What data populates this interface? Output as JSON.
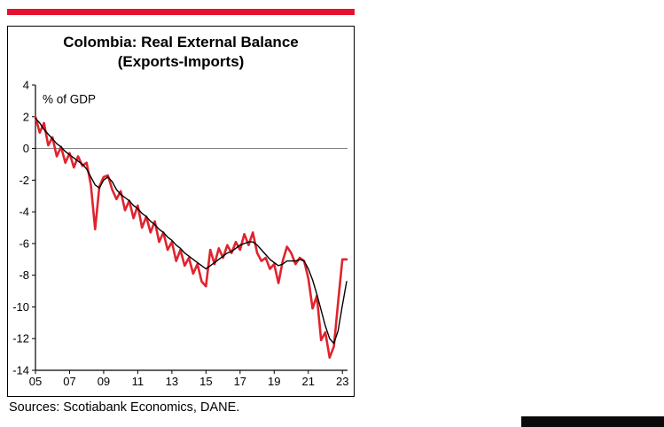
{
  "page": {
    "sources": "Sources: Scotiabank Economics, DANE."
  },
  "chart_data": {
    "type": "line",
    "title": "Colombia: Real External Balance",
    "subtitle": "(Exports-Imports)",
    "ylabel_annotation": "% of GDP",
    "ylim": [
      -14,
      4
    ],
    "ytick_step": 2,
    "xlim": [
      2005,
      2023.3
    ],
    "xticks": [
      2005,
      2007,
      2009,
      2011,
      2013,
      2015,
      2017,
      2019,
      2021,
      2023
    ],
    "xtick_labels": [
      "05",
      "07",
      "09",
      "11",
      "13",
      "15",
      "17",
      "19",
      "21",
      "23"
    ],
    "zero_line": true,
    "grid": false,
    "legend": "none",
    "colors": {
      "brand_red_bar": "#e8112d",
      "series_red": "#e0232e",
      "series_black": "#000000",
      "zero_line": "#7f7f7f"
    },
    "series": [
      {
        "name": "quarterly real external balance",
        "color": "#e0232e",
        "width": 2.6,
        "x_start": 2005.0,
        "x_step": 0.25,
        "values": [
          2.0,
          1.0,
          1.6,
          0.2,
          0.7,
          -0.5,
          0.1,
          -0.9,
          -0.3,
          -1.2,
          -0.5,
          -1.1,
          -0.9,
          -2.3,
          -5.1,
          -2.4,
          -1.8,
          -1.7,
          -2.6,
          -3.2,
          -2.7,
          -3.9,
          -3.3,
          -4.4,
          -3.6,
          -5.0,
          -4.3,
          -5.3,
          -4.6,
          -5.9,
          -5.3,
          -6.4,
          -5.9,
          -7.1,
          -6.4,
          -7.4,
          -6.9,
          -7.9,
          -7.3,
          -8.4,
          -8.7,
          -6.4,
          -7.3,
          -6.3,
          -6.9,
          -6.1,
          -6.6,
          -5.9,
          -6.4,
          -5.4,
          -6.1,
          -5.3,
          -6.6,
          -7.1,
          -6.9,
          -7.6,
          -7.3,
          -8.5,
          -7.1,
          -6.2,
          -6.6,
          -7.3,
          -6.9,
          -7.1,
          -8.2,
          -10.1,
          -9.3,
          -12.1,
          -11.6,
          -13.2,
          -12.5,
          -9.7,
          -7.0,
          -7.0
        ]
      },
      {
        "name": "trend (smoothed)",
        "color": "#000000",
        "width": 1.4,
        "x_start": 2005.0,
        "x_step": 0.25,
        "values": [
          1.9,
          1.6,
          1.2,
          0.9,
          0.6,
          0.3,
          0.1,
          -0.2,
          -0.4,
          -0.6,
          -0.8,
          -1.0,
          -1.3,
          -1.8,
          -2.3,
          -2.5,
          -2.0,
          -1.8,
          -2.1,
          -2.6,
          -2.9,
          -3.1,
          -3.3,
          -3.6,
          -3.8,
          -4.1,
          -4.3,
          -4.6,
          -4.8,
          -5.1,
          -5.3,
          -5.6,
          -5.8,
          -6.1,
          -6.3,
          -6.6,
          -6.8,
          -7.0,
          -7.2,
          -7.4,
          -7.6,
          -7.4,
          -7.2,
          -7.0,
          -6.8,
          -6.6,
          -6.5,
          -6.3,
          -6.1,
          -6.0,
          -5.9,
          -5.9,
          -6.1,
          -6.4,
          -6.7,
          -7.0,
          -7.2,
          -7.4,
          -7.3,
          -7.1,
          -7.1,
          -7.1,
          -7.0,
          -7.1,
          -7.6,
          -8.3,
          -9.2,
          -10.2,
          -11.2,
          -12.0,
          -12.3,
          -11.5,
          -9.9,
          -8.4
        ]
      }
    ]
  }
}
